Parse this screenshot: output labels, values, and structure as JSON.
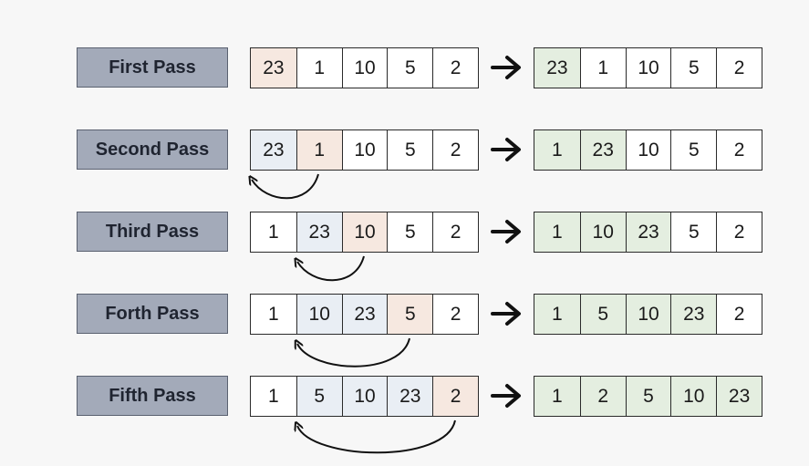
{
  "colors": {
    "label_bg": "#a3aab9",
    "key_cell": "#f6e8e0",
    "shifted_cell": "#e9eef4",
    "sorted_cell": "#e4eee0"
  },
  "icons": [
    "arrow-right-icon",
    "curved-arrow-icon"
  ],
  "passes": [
    {
      "label": "First Pass",
      "before": [
        "23",
        "1",
        "10",
        "5",
        "2"
      ],
      "before_styles": [
        "key",
        "",
        "",
        "",
        ""
      ],
      "after": [
        "23",
        "1",
        "10",
        "5",
        "2"
      ],
      "after_styles": [
        "sorted",
        "",
        "",
        "",
        ""
      ]
    },
    {
      "label": "Second Pass",
      "before": [
        "23",
        "1",
        "10",
        "5",
        "2"
      ],
      "before_styles": [
        "shift",
        "key",
        "",
        "",
        ""
      ],
      "after": [
        "1",
        "23",
        "10",
        "5",
        "2"
      ],
      "after_styles": [
        "sorted",
        "sorted",
        "",
        "",
        ""
      ],
      "move": {
        "from": 1,
        "to": 0
      }
    },
    {
      "label": "Third Pass",
      "before": [
        "1",
        "23",
        "10",
        "5",
        "2"
      ],
      "before_styles": [
        "",
        "shift",
        "key",
        "",
        ""
      ],
      "after": [
        "1",
        "10",
        "23",
        "5",
        "2"
      ],
      "after_styles": [
        "sorted",
        "sorted",
        "sorted",
        "",
        ""
      ],
      "move": {
        "from": 2,
        "to": 1
      }
    },
    {
      "label": "Forth Pass",
      "before": [
        "1",
        "10",
        "23",
        "5",
        "2"
      ],
      "before_styles": [
        "",
        "shift",
        "shift",
        "key",
        ""
      ],
      "after": [
        "1",
        "5",
        "10",
        "23",
        "2"
      ],
      "after_styles": [
        "sorted",
        "sorted",
        "sorted",
        "sorted",
        ""
      ],
      "move": {
        "from": 3,
        "to": 1
      }
    },
    {
      "label": "Fifth Pass",
      "before": [
        "1",
        "5",
        "10",
        "23",
        "2"
      ],
      "before_styles": [
        "",
        "shift",
        "shift",
        "shift",
        "key"
      ],
      "after": [
        "1",
        "2",
        "5",
        "10",
        "23"
      ],
      "after_styles": [
        "sorted",
        "sorted",
        "sorted",
        "sorted",
        "sorted"
      ],
      "move": {
        "from": 4,
        "to": 1
      }
    }
  ]
}
